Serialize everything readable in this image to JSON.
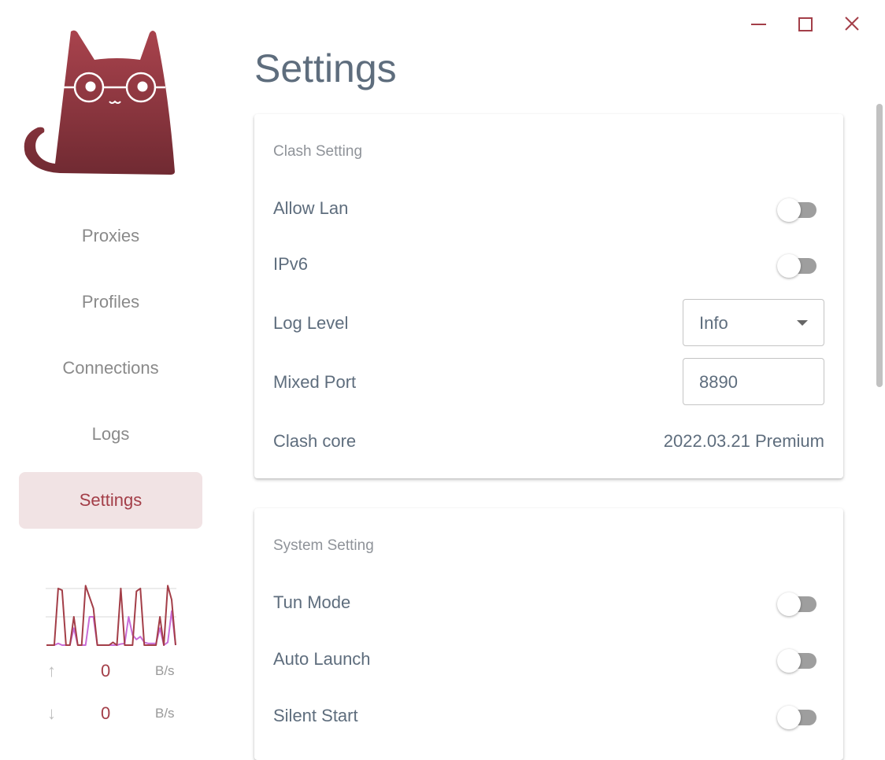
{
  "window": {
    "minimize_icon": "minimize-icon",
    "maximize_icon": "maximize-icon",
    "close_icon": "close-icon",
    "accent": "#a33e48"
  },
  "sidebar": {
    "items": [
      {
        "label": "Proxies"
      },
      {
        "label": "Profiles"
      },
      {
        "label": "Connections"
      },
      {
        "label": "Logs"
      },
      {
        "label": "Settings",
        "active": true
      }
    ],
    "traffic": {
      "up_value": "0",
      "up_unit": "B/s",
      "down_value": "0",
      "down_unit": "B/s"
    }
  },
  "chart_data": {
    "type": "line",
    "series": [
      {
        "color": "#a33e48",
        "values": [
          0,
          0,
          0,
          1,
          0.97,
          0,
          0,
          0.5,
          0,
          0,
          1.05,
          0.85,
          0.65,
          0,
          0,
          0,
          0,
          0.05,
          0,
          1,
          0,
          0,
          0,
          0.95,
          1,
          0,
          0,
          0,
          0,
          0.5,
          0,
          1.05,
          0.8,
          0
        ]
      },
      {
        "color": "#c86dd7",
        "values": [
          0,
          0,
          0,
          0.03,
          0,
          0,
          0,
          0.3,
          0,
          0,
          0,
          0.5,
          0.5,
          0,
          0,
          0,
          0,
          0,
          0,
          0.02,
          0.03,
          0.5,
          0.18,
          0.1,
          0.15,
          0.05,
          0.03,
          0.03,
          0.03,
          0.3,
          0,
          0.05,
          0.6,
          0
        ]
      }
    ]
  },
  "main": {
    "title": "Settings",
    "clash": {
      "title": "Clash Setting",
      "allow_lan": {
        "label": "Allow Lan",
        "on": false
      },
      "ipv6": {
        "label": "IPv6",
        "on": false
      },
      "log_level": {
        "label": "Log Level",
        "value": "Info"
      },
      "mixed_port": {
        "label": "Mixed Port",
        "value": "8890"
      },
      "core": {
        "label": "Clash core",
        "value": "2022.03.21 Premium"
      }
    },
    "system": {
      "title": "System Setting",
      "tun": {
        "label": "Tun Mode",
        "on": false
      },
      "auto_launch": {
        "label": "Auto Launch",
        "on": false
      },
      "silent_start": {
        "label": "Silent Start",
        "on": false
      }
    }
  }
}
